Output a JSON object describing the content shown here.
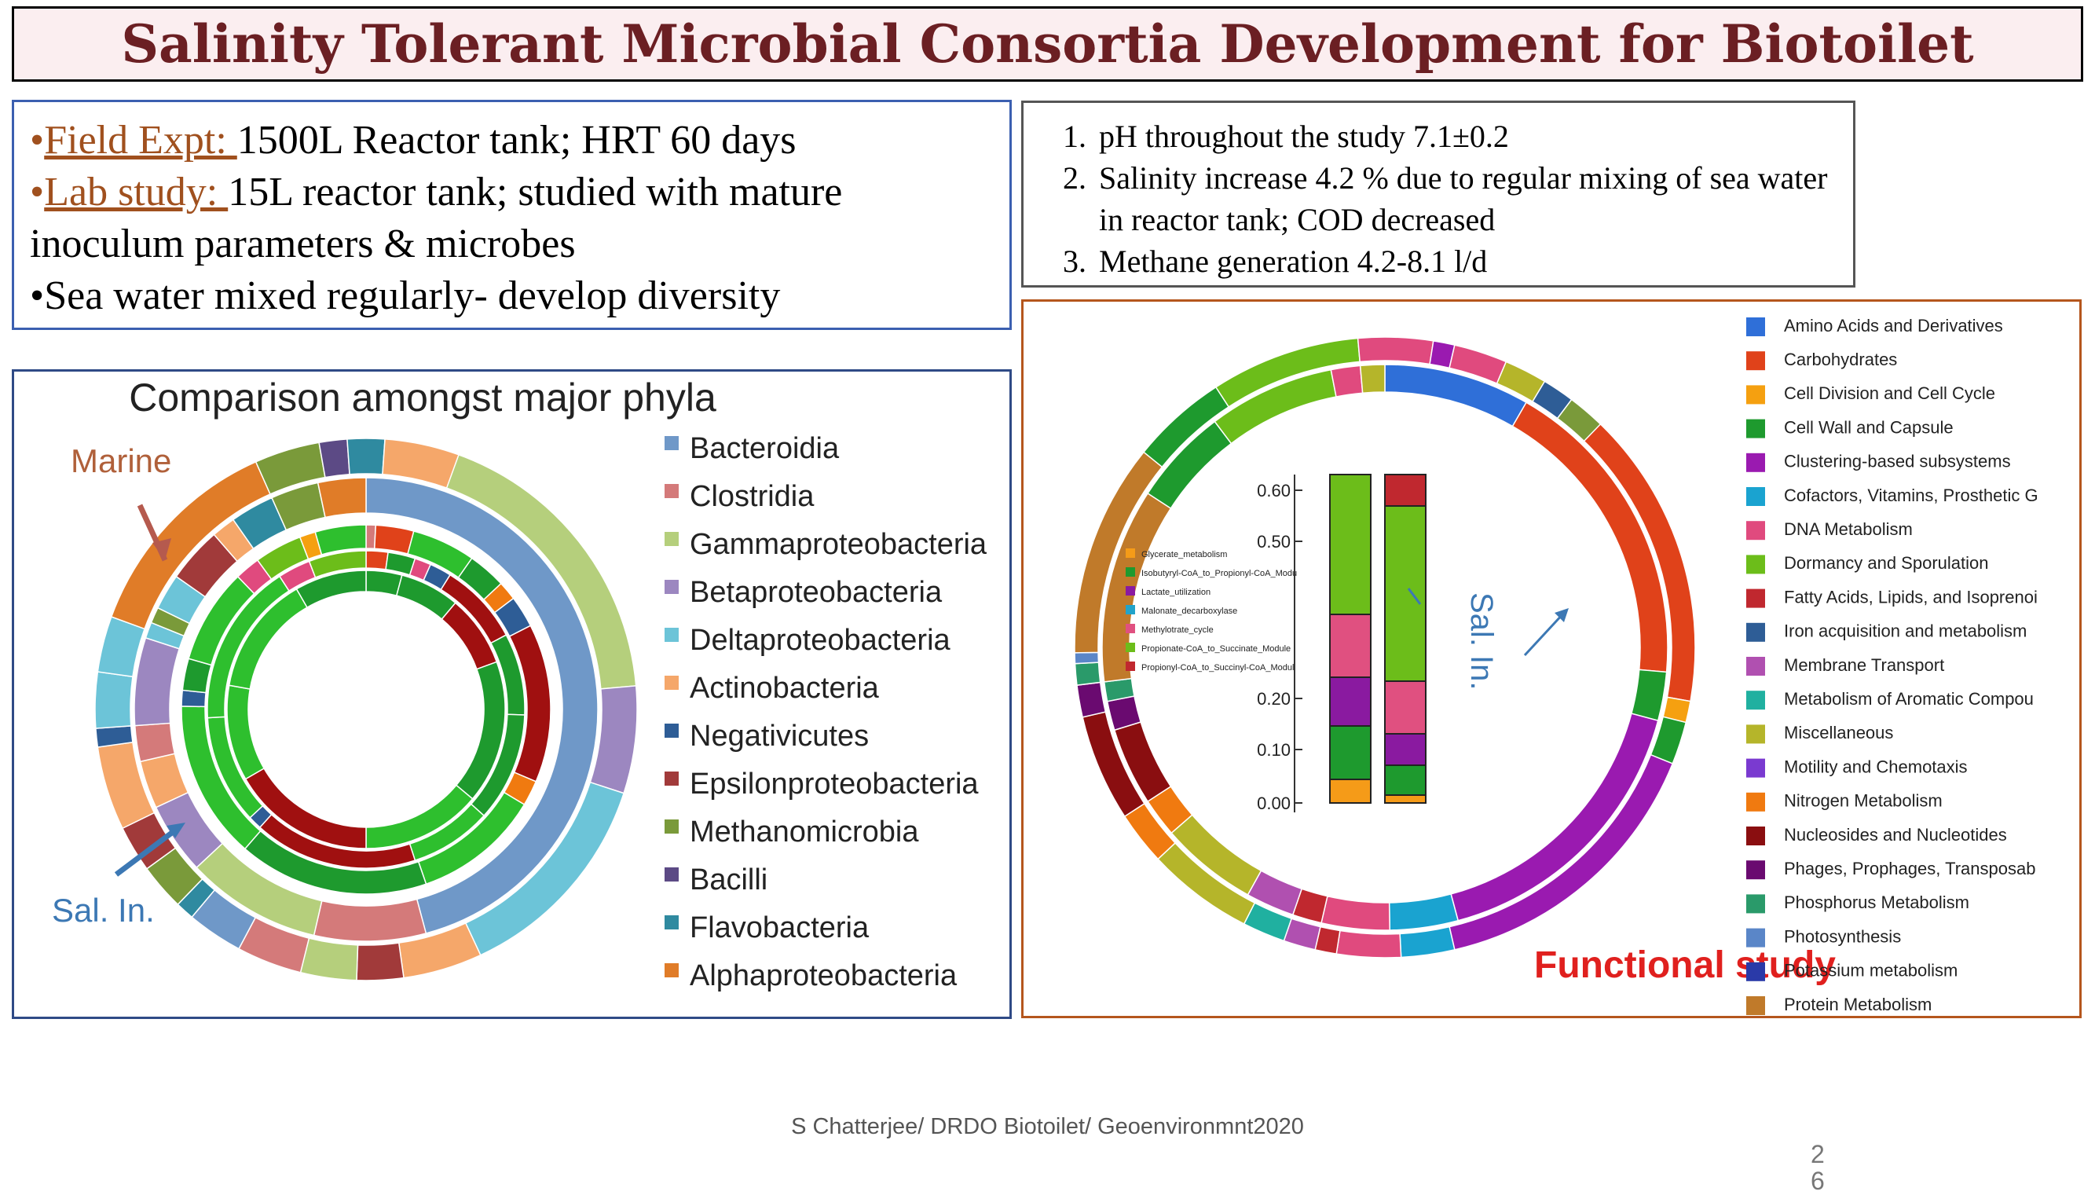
{
  "title": "Salinity Tolerant Microbial Consortia Development for Biotoilet",
  "info_left": {
    "line1_link": "Field Expt: ",
    "line1_text": "1500L Reactor tank; HRT 60 days",
    "line2_link": "Lab study: ",
    "line2_text": "15L reactor tank; studied with mature",
    "line3_text": "inoculum parameters & microbes",
    "line4_text": "Sea water mixed regularly- develop diversity"
  },
  "info_right": {
    "items": [
      "pH throughout the study 7.1±0.2",
      "Salinity increase 4.2 % due to regular mixing of sea water in reactor tank; COD decreased",
      "Methane generation 4.2-8.1 l/d"
    ]
  },
  "phyla_chart": {
    "title": "Comparison amongst major phyla",
    "annotation_marine": "Marine",
    "annotation_salin": "Sal. In.",
    "legend": [
      {
        "label": "Bacteroidia",
        "color": "#6f98c8"
      },
      {
        "label": "Clostridia",
        "color": "#d47a7a"
      },
      {
        "label": "Gammaproteobacteria",
        "color": "#b5cf7c"
      },
      {
        "label": "Betaproteobacteria",
        "color": "#9c87c0"
      },
      {
        "label": "Deltaproteobacteria",
        "color": "#6cc4d8"
      },
      {
        "label": "Actinobacteria",
        "color": "#f5a76a"
      },
      {
        "label": "Negativicutes",
        "color": "#2e5d96"
      },
      {
        "label": "Epsilonproteobacteria",
        "color": "#a13a3a"
      },
      {
        "label": "Methanomicrobia",
        "color": "#7a9a3a"
      },
      {
        "label": "Bacilli",
        "color": "#5c4a85"
      },
      {
        "label": "Flavobacteria",
        "color": "#2f8aa0"
      },
      {
        "label": "Alphaproteobacteria",
        "color": "#e07c28"
      }
    ]
  },
  "functional_chart": {
    "label": "Functional study",
    "annotation_salin": "Sal. In.",
    "inner_axis_ticks": [
      "0.60",
      "0.50",
      "0.20",
      "0.10",
      "0.00"
    ],
    "inner_legend": [
      {
        "label": "Glycerate_metabolism",
        "color": "#f59b18"
      },
      {
        "label": "Isobutyryl-CoA_to_Propionyl-CoA_Modu",
        "color": "#1e9a2e"
      },
      {
        "label": "Lactate_utilization",
        "color": "#8a1aa0"
      },
      {
        "label": "Malonate_decarboxylase",
        "color": "#22a3c9"
      },
      {
        "label": "Methylotrate_cycle",
        "color": "#e05080"
      },
      {
        "label": "Propionate-CoA_to_Succinate_Module",
        "color": "#6cbd1a"
      },
      {
        "label": "Propionyl-CoA_to_Succinyl-CoA_Modul",
        "color": "#c0282f"
      }
    ],
    "legend": [
      {
        "label": "Amino Acids and Derivatives",
        "color": "#2f6fd8"
      },
      {
        "label": "Carbohydrates",
        "color": "#e0421a"
      },
      {
        "label": "Cell Division and Cell Cycle",
        "color": "#f5a010"
      },
      {
        "label": "Cell Wall and Capsule",
        "color": "#1e9a2e"
      },
      {
        "label": "Clustering-based subsystems",
        "color": "#9a1ab0"
      },
      {
        "label": "Cofactors, Vitamins, Prosthetic G",
        "color": "#1aa3d0"
      },
      {
        "label": "DNA Metabolism",
        "color": "#e04a7e"
      },
      {
        "label": "Dormancy and Sporulation",
        "color": "#6cbd1a"
      },
      {
        "label": "Fatty Acids, Lipids, and Isoprenoi",
        "color": "#c0282f"
      },
      {
        "label": "Iron acquisition and metabolism",
        "color": "#2e5d96"
      },
      {
        "label": "Membrane Transport",
        "color": "#b050b0"
      },
      {
        "label": "Metabolism of Aromatic Compou",
        "color": "#20b0a0"
      },
      {
        "label": "Miscellaneous",
        "color": "#b5b52a"
      },
      {
        "label": "Motility and Chemotaxis",
        "color": "#7a3ad0"
      },
      {
        "label": "Nitrogen Metabolism",
        "color": "#f07a10"
      },
      {
        "label": "Nucleosides and Nucleotides",
        "color": "#8a0e10"
      },
      {
        "label": "Phages, Prophages, Transposab",
        "color": "#6a0a70"
      },
      {
        "label": "Phosphorus Metabolism",
        "color": "#2a9a6a"
      },
      {
        "label": "Photosynthesis",
        "color": "#5a86c8"
      },
      {
        "label": "Potassium metabolism",
        "color": "#2a3aa8"
      },
      {
        "label": "Protein Metabolism",
        "color": "#c07a2a"
      }
    ]
  },
  "footer": "S Chatterjee/ DRDO Biotoilet/ Geoenvironmnt2020",
  "page_number": "2\n6"
}
